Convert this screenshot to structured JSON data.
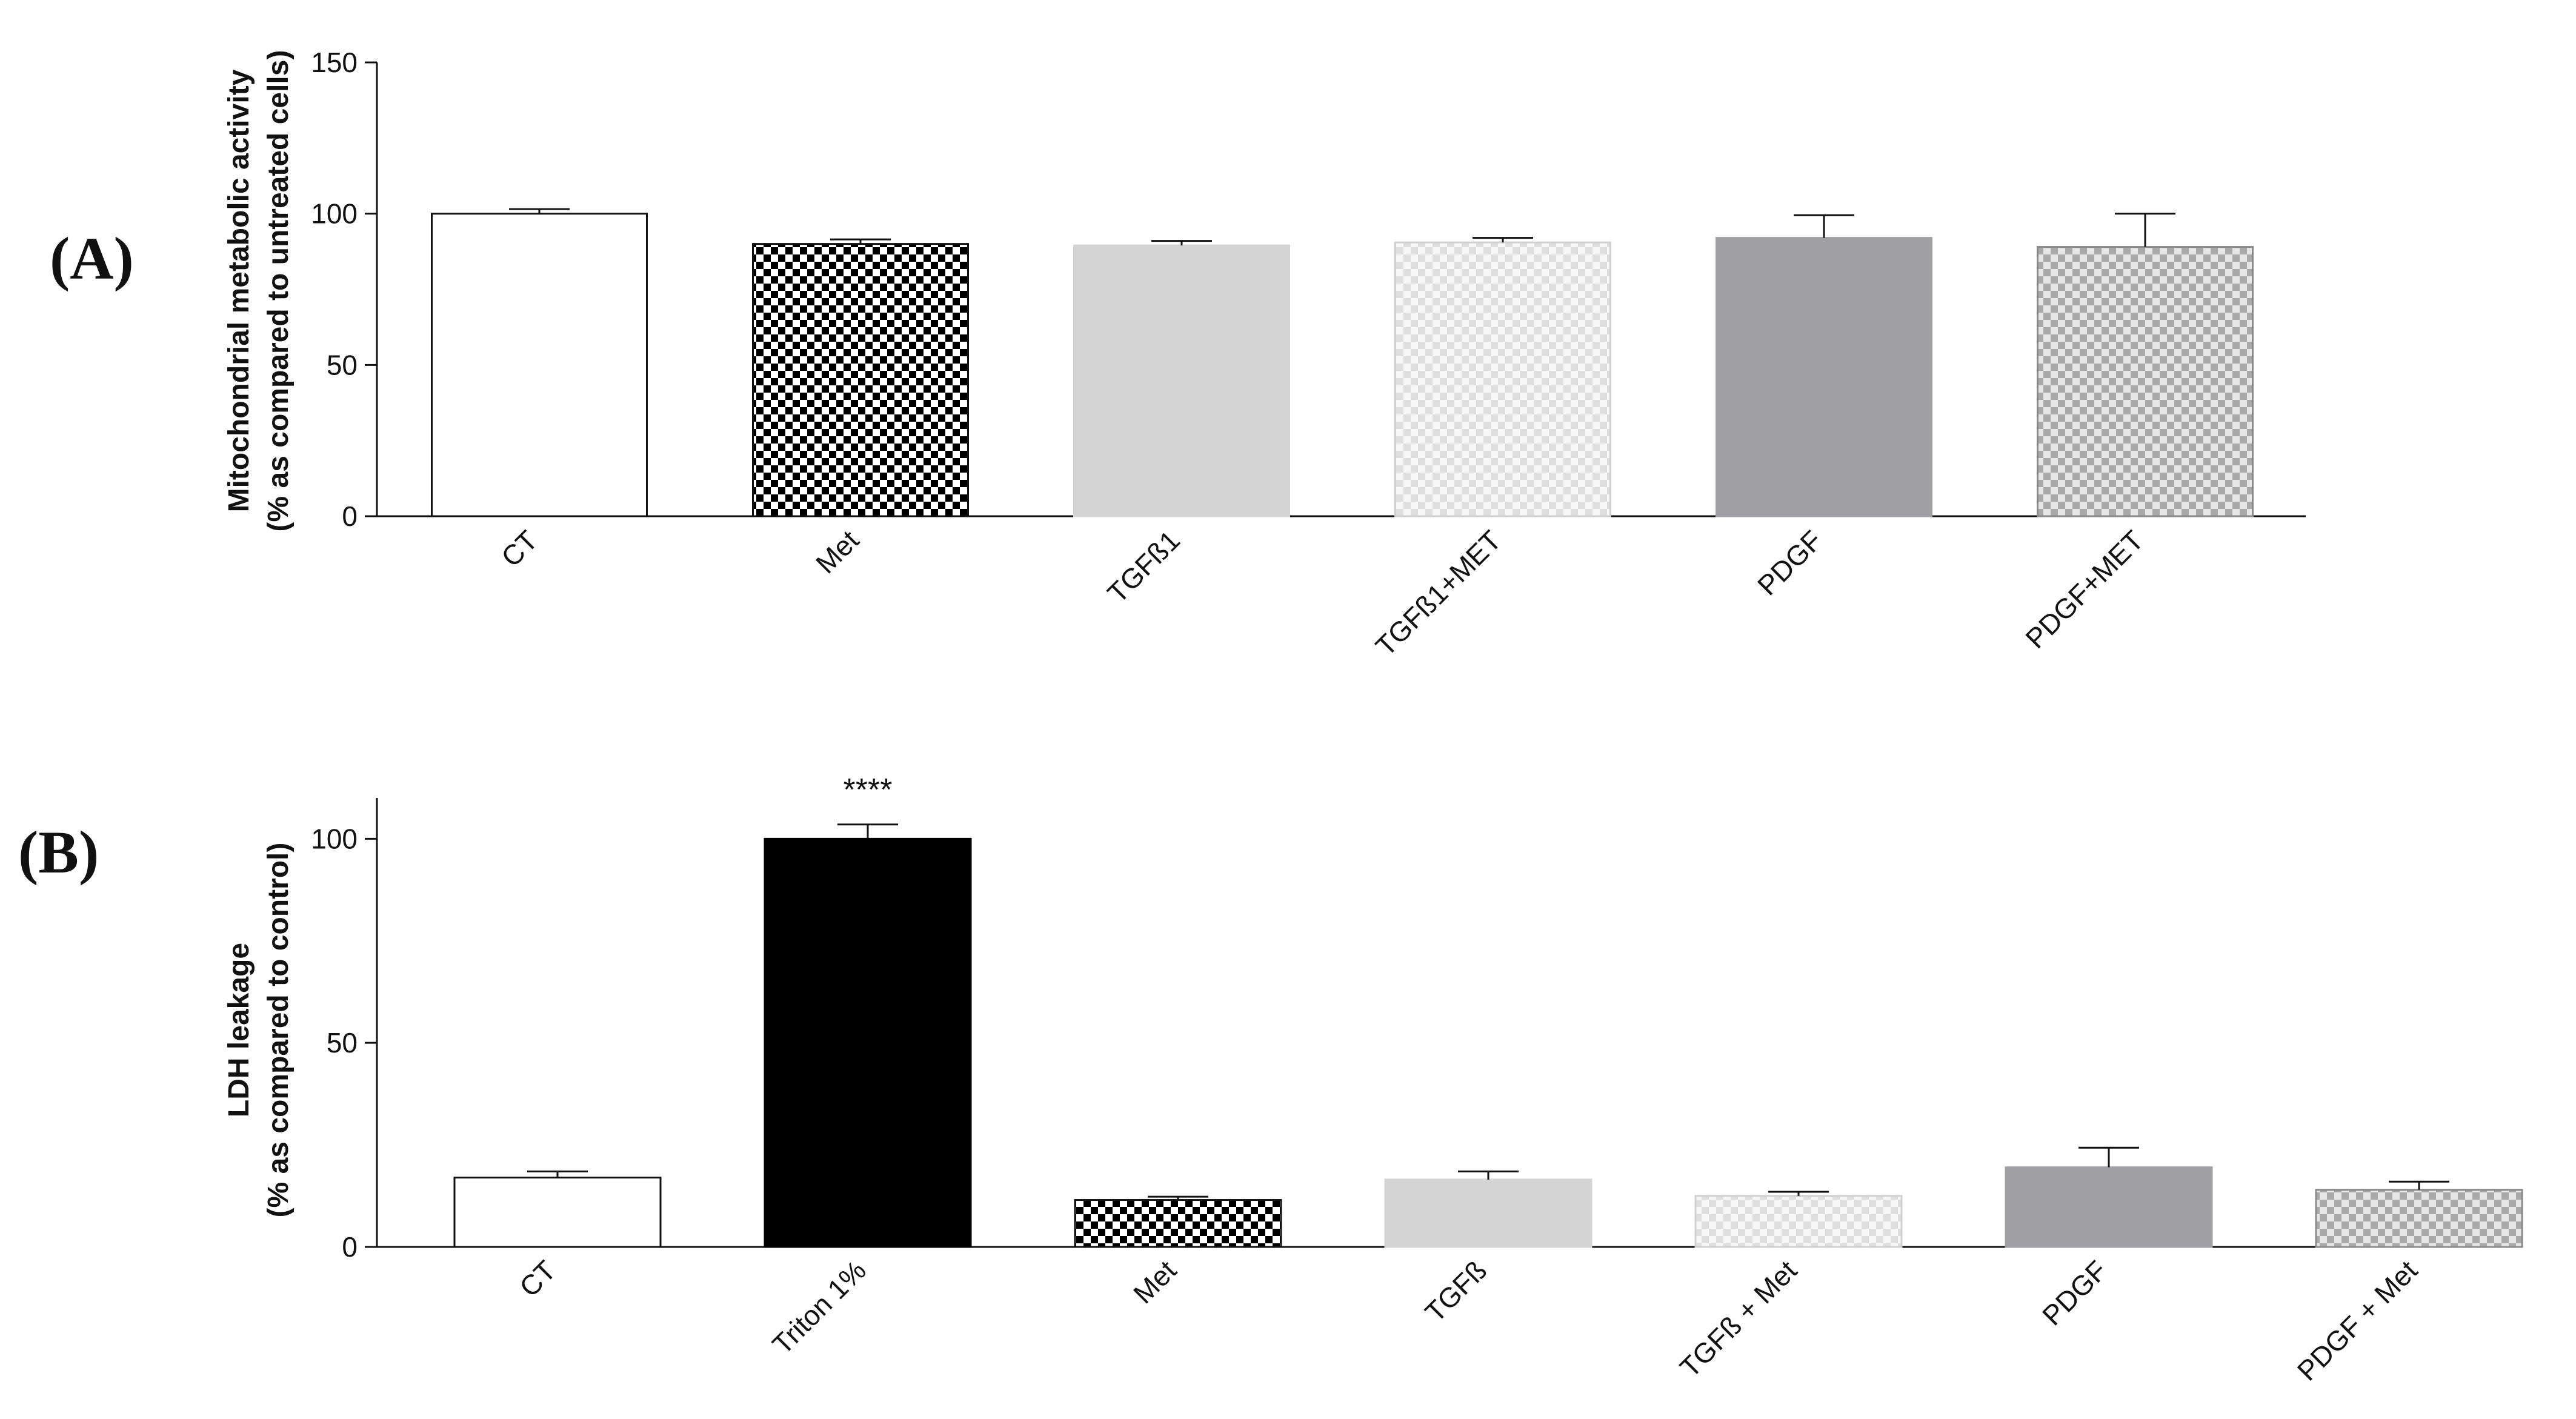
{
  "charts": [
    {
      "panel_label": "(A)",
      "chart_data": {
        "type": "bar",
        "title": "",
        "xlabel": "",
        "ylabel_lines": [
          "Mitochondrial metabolic activity",
          "(% as compared to untreated cells)"
        ],
        "ylim": [
          0,
          150
        ],
        "yticks": [
          0,
          50,
          100,
          150
        ],
        "categories": [
          "CT",
          "Met",
          "TGFß1",
          "TGFß1+MET",
          "PDGF",
          "PDGF+MET"
        ],
        "values": [
          100,
          90,
          89.5,
          90.5,
          92,
          89
        ],
        "errors": [
          1.5,
          1.5,
          1.5,
          1.5,
          7.5,
          11
        ],
        "fills": [
          "white",
          "checker-black",
          "light-gray",
          "checker-light",
          "gray",
          "checker-gray"
        ],
        "grid": false,
        "legend": "none"
      }
    },
    {
      "panel_label": "(B)",
      "chart_data": {
        "type": "bar",
        "title": "",
        "xlabel": "",
        "ylabel_lines": [
          "LDH leakage",
          "(% as compared to control)"
        ],
        "ylim": [
          0,
          110
        ],
        "yticks": [
          0,
          50,
          100
        ],
        "categories": [
          "CT",
          "Triton 1%",
          "Met",
          "TGFß",
          "TGFß + Met",
          "PDGF",
          "PDGF + Met"
        ],
        "values": [
          17,
          100,
          11.5,
          16.5,
          12.5,
          19.5,
          14
        ],
        "errors": [
          1.5,
          3.5,
          0.8,
          2,
          1,
          4.8,
          2
        ],
        "annotations": [
          "",
          "****",
          "",
          "",
          "",
          "",
          ""
        ],
        "fills": [
          "white",
          "black",
          "checker-black",
          "light-gray",
          "checker-light",
          "gray",
          "checker-gray"
        ],
        "grid": false,
        "legend": "none"
      }
    }
  ],
  "colors": {
    "axis": "#111111",
    "black": "#000000",
    "light_gray": "#d4d4d4",
    "gray": "#a0a0a4",
    "checker_light": "#dedede",
    "checker_gray": "#a8a8a8"
  }
}
